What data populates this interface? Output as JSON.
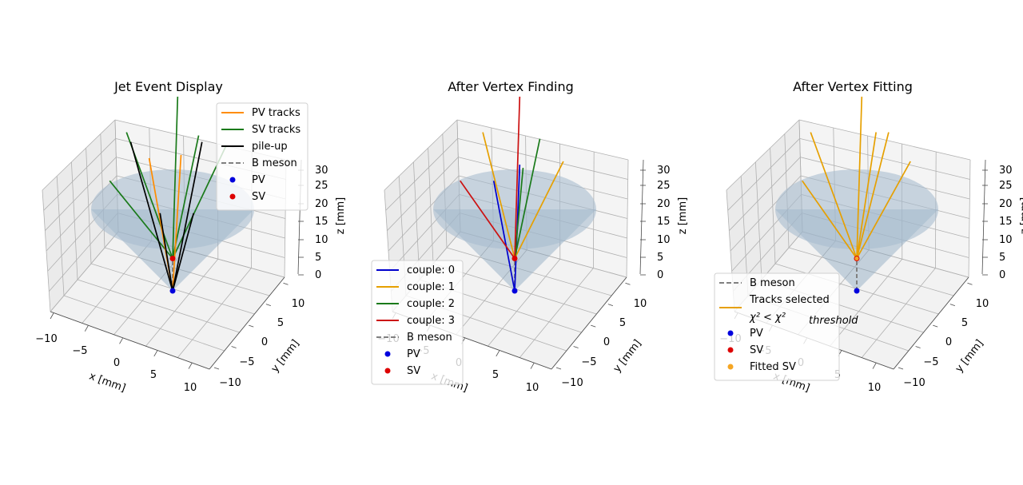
{
  "panels": [
    {
      "title": "Jet Event Display",
      "xlabel": "x [mm]",
      "ylabel": "y [mm]",
      "zlabel": "z [mm]",
      "x_ticks": [
        "−10",
        "−5",
        "0",
        "5",
        "10"
      ],
      "y_ticks": [
        "−10",
        "−5",
        "0",
        "5",
        "10"
      ],
      "z_ticks": [
        "0",
        "5",
        "10",
        "15",
        "20",
        "25",
        "30"
      ],
      "legend": [
        {
          "label": "PV tracks",
          "kind": "line",
          "color": "#ff8c00"
        },
        {
          "label": "SV tracks",
          "kind": "line",
          "color": "#1a7a1a"
        },
        {
          "label": "pile-up",
          "kind": "line",
          "color": "#000000"
        },
        {
          "label": "B meson",
          "kind": "dashed",
          "color": "#808080"
        },
        {
          "label": "PV",
          "kind": "dot",
          "color": "#0000dd"
        },
        {
          "label": "SV",
          "kind": "dot",
          "color": "#dd0000"
        }
      ]
    },
    {
      "title": "After Vertex Finding",
      "xlabel": "x [mm]",
      "ylabel": "y [mm]",
      "zlabel": "z [mm]",
      "x_ticks": [
        "−10",
        "−5",
        "0",
        "5",
        "10"
      ],
      "y_ticks": [
        "−10",
        "−5",
        "0",
        "5",
        "10"
      ],
      "z_ticks": [
        "0",
        "5",
        "10",
        "15",
        "20",
        "25",
        "30"
      ],
      "legend": [
        {
          "label": "couple: 0",
          "kind": "line",
          "color": "#0000cc"
        },
        {
          "label": "couple: 1",
          "kind": "line",
          "color": "#e6a000"
        },
        {
          "label": "couple: 2",
          "kind": "line",
          "color": "#1a7a1a"
        },
        {
          "label": "couple: 3",
          "kind": "line",
          "color": "#cc1111"
        },
        {
          "label": "B meson",
          "kind": "dashed",
          "color": "#808080"
        },
        {
          "label": "PV",
          "kind": "dot",
          "color": "#0000dd"
        },
        {
          "label": "SV",
          "kind": "dot",
          "color": "#dd0000"
        }
      ]
    },
    {
      "title": "After Vertex Fitting",
      "xlabel": "x [mm]",
      "ylabel": "y [mm]",
      "zlabel": "z [mm]",
      "x_ticks": [
        "−10",
        "−5",
        "0",
        "5",
        "10"
      ],
      "y_ticks": [
        "−10",
        "−5",
        "0",
        "5",
        "10"
      ],
      "z_ticks": [
        "0",
        "5",
        "10",
        "15",
        "20",
        "25",
        "30"
      ],
      "legend": [
        {
          "label": "B meson",
          "kind": "dashed",
          "color": "#808080"
        },
        {
          "label": "Tracks selected",
          "label2": "χ² < χ²",
          "label2_sub": "threshold",
          "kind": "line",
          "color": "#e6a000"
        },
        {
          "label": "PV",
          "kind": "dot",
          "color": "#0000dd"
        },
        {
          "label": "SV",
          "kind": "dot",
          "color": "#dd0000"
        },
        {
          "label": "Fitted SV",
          "kind": "dot",
          "color": "#f5a623"
        }
      ]
    }
  ],
  "chart_data": [
    {
      "type": "scatter",
      "title": "Jet Event Display",
      "xlabel": "x [mm]",
      "ylabel": "y [mm]",
      "zlabel": "z [mm]",
      "xlim": [
        -10,
        10
      ],
      "ylim": [
        -10,
        10
      ],
      "zlim": [
        0,
        30
      ],
      "points": [
        {
          "name": "PV",
          "x": 0,
          "y": 0,
          "z": 0,
          "color": "#0000dd"
        },
        {
          "name": "SV",
          "x": 0,
          "y": 0,
          "z": 5,
          "color": "#dd0000"
        }
      ],
      "segments": [
        {
          "name": "B meson",
          "style": "dashed",
          "color": "#808080",
          "from": [
            0,
            0,
            0
          ],
          "to": [
            0,
            0,
            5
          ]
        },
        {
          "name": "SV tracks",
          "color": "#1a7a1a",
          "from": [
            0,
            0,
            5
          ],
          "to": [
            -7.5,
            0,
            17
          ]
        },
        {
          "name": "SV tracks",
          "color": "#1a7a1a",
          "from": [
            0,
            0,
            5
          ],
          "to": [
            -5.5,
            0,
            24.5
          ]
        },
        {
          "name": "SV tracks",
          "color": "#1a7a1a",
          "from": [
            0,
            0,
            5
          ],
          "to": [
            0.6,
            0,
            30
          ]
        },
        {
          "name": "SV tracks",
          "color": "#1a7a1a",
          "from": [
            0,
            0,
            5
          ],
          "to": [
            3.1,
            0,
            24
          ]
        },
        {
          "name": "SV tracks",
          "color": "#1a7a1a",
          "from": [
            0,
            0,
            5
          ],
          "to": [
            6.4,
            0,
            22.5
          ]
        },
        {
          "name": "PV tracks",
          "color": "#ff8c00",
          "from": [
            0,
            0,
            0
          ],
          "to": [
            -2.8,
            0,
            20.5
          ]
        },
        {
          "name": "PV tracks",
          "color": "#ff8c00",
          "from": [
            0,
            0,
            0
          ],
          "to": [
            1,
            0,
            21
          ]
        },
        {
          "name": "pile-up",
          "color": "#000000",
          "from": [
            0,
            0,
            0
          ],
          "to": [
            -5,
            0,
            23
          ]
        },
        {
          "name": "pile-up",
          "color": "#000000",
          "from": [
            0,
            0,
            0
          ],
          "to": [
            3.5,
            0,
            23
          ]
        },
        {
          "name": "pile-up",
          "color": "#000000",
          "from": [
            0,
            0,
            0
          ],
          "to": [
            -1.5,
            0,
            12
          ]
        },
        {
          "name": "pile-up",
          "color": "#000000",
          "from": [
            0,
            0,
            0
          ],
          "to": [
            2.5,
            0,
            12
          ]
        }
      ]
    },
    {
      "type": "scatter",
      "title": "After Vertex Finding",
      "xlabel": "x [mm]",
      "ylabel": "y [mm]",
      "zlabel": "z [mm]",
      "xlim": [
        -10,
        10
      ],
      "ylim": [
        -10,
        10
      ],
      "zlim": [
        0,
        30
      ],
      "points": [
        {
          "name": "PV",
          "x": 0,
          "y": 0,
          "z": 0,
          "color": "#0000dd"
        },
        {
          "name": "SV",
          "x": 0,
          "y": 0,
          "z": 5,
          "color": "#dd0000"
        }
      ],
      "segments": [
        {
          "name": "B meson",
          "style": "dashed",
          "color": "#808080",
          "from": [
            0,
            0,
            0
          ],
          "to": [
            0,
            0,
            5
          ]
        },
        {
          "name": "couple: 0",
          "color": "#0000cc",
          "from": [
            0,
            0,
            0
          ],
          "to": [
            -2.5,
            0,
            17
          ]
        },
        {
          "name": "couple: 0",
          "color": "#0000cc",
          "from": [
            0,
            0,
            0
          ],
          "to": [
            0.6,
            0,
            19.5
          ]
        },
        {
          "name": "couple: 1",
          "color": "#e6a000",
          "from": [
            0,
            0,
            5
          ],
          "to": [
            -3.8,
            0,
            24.5
          ]
        },
        {
          "name": "couple: 1",
          "color": "#e6a000",
          "from": [
            0,
            0,
            5
          ],
          "to": [
            5.8,
            0,
            20
          ]
        },
        {
          "name": "couple: 2",
          "color": "#1a7a1a",
          "from": [
            0,
            0,
            5
          ],
          "to": [
            3,
            0,
            23.5
          ]
        },
        {
          "name": "couple: 2",
          "color": "#1a7a1a",
          "from": [
            0,
            0,
            5
          ],
          "to": [
            1,
            0,
            19
          ]
        },
        {
          "name": "couple: 3",
          "color": "#cc1111",
          "from": [
            0,
            0,
            5
          ],
          "to": [
            -6.5,
            0,
            17
          ]
        },
        {
          "name": "couple: 3",
          "color": "#cc1111",
          "from": [
            0,
            0,
            5
          ],
          "to": [
            0.6,
            0,
            30
          ]
        }
      ]
    },
    {
      "type": "scatter",
      "title": "After Vertex Fitting",
      "xlabel": "x [mm]",
      "ylabel": "y [mm]",
      "zlabel": "z [mm]",
      "xlim": [
        -10,
        10
      ],
      "ylim": [
        -10,
        10
      ],
      "zlim": [
        0,
        30
      ],
      "points": [
        {
          "name": "PV",
          "x": 0,
          "y": 0,
          "z": 0,
          "color": "#0000dd"
        },
        {
          "name": "SV",
          "x": 0,
          "y": 0,
          "z": 5,
          "color": "#dd0000"
        },
        {
          "name": "Fitted SV",
          "x": 0,
          "y": 0,
          "z": 5,
          "color": "#f5a623"
        }
      ],
      "segments": [
        {
          "name": "B meson",
          "style": "dashed",
          "color": "#808080",
          "from": [
            0,
            0,
            0
          ],
          "to": [
            0,
            0,
            5
          ]
        },
        {
          "name": "Tracks selected",
          "color": "#e6a000",
          "from": [
            0,
            0,
            5
          ],
          "to": [
            -6.5,
            0,
            17
          ]
        },
        {
          "name": "Tracks selected",
          "color": "#e6a000",
          "from": [
            0,
            0,
            5
          ],
          "to": [
            -5.5,
            0,
            24.5
          ]
        },
        {
          "name": "Tracks selected",
          "color": "#e6a000",
          "from": [
            0,
            0,
            5
          ],
          "to": [
            0.6,
            0,
            30
          ]
        },
        {
          "name": "Tracks selected",
          "color": "#e6a000",
          "from": [
            0,
            0,
            5
          ],
          "to": [
            2.3,
            0,
            24.5
          ]
        },
        {
          "name": "Tracks selected",
          "color": "#e6a000",
          "from": [
            0,
            0,
            5
          ],
          "to": [
            3.8,
            0,
            24.5
          ]
        },
        {
          "name": "Tracks selected",
          "color": "#e6a000",
          "from": [
            0,
            0,
            5
          ],
          "to": [
            6.4,
            0,
            20
          ]
        }
      ]
    }
  ]
}
